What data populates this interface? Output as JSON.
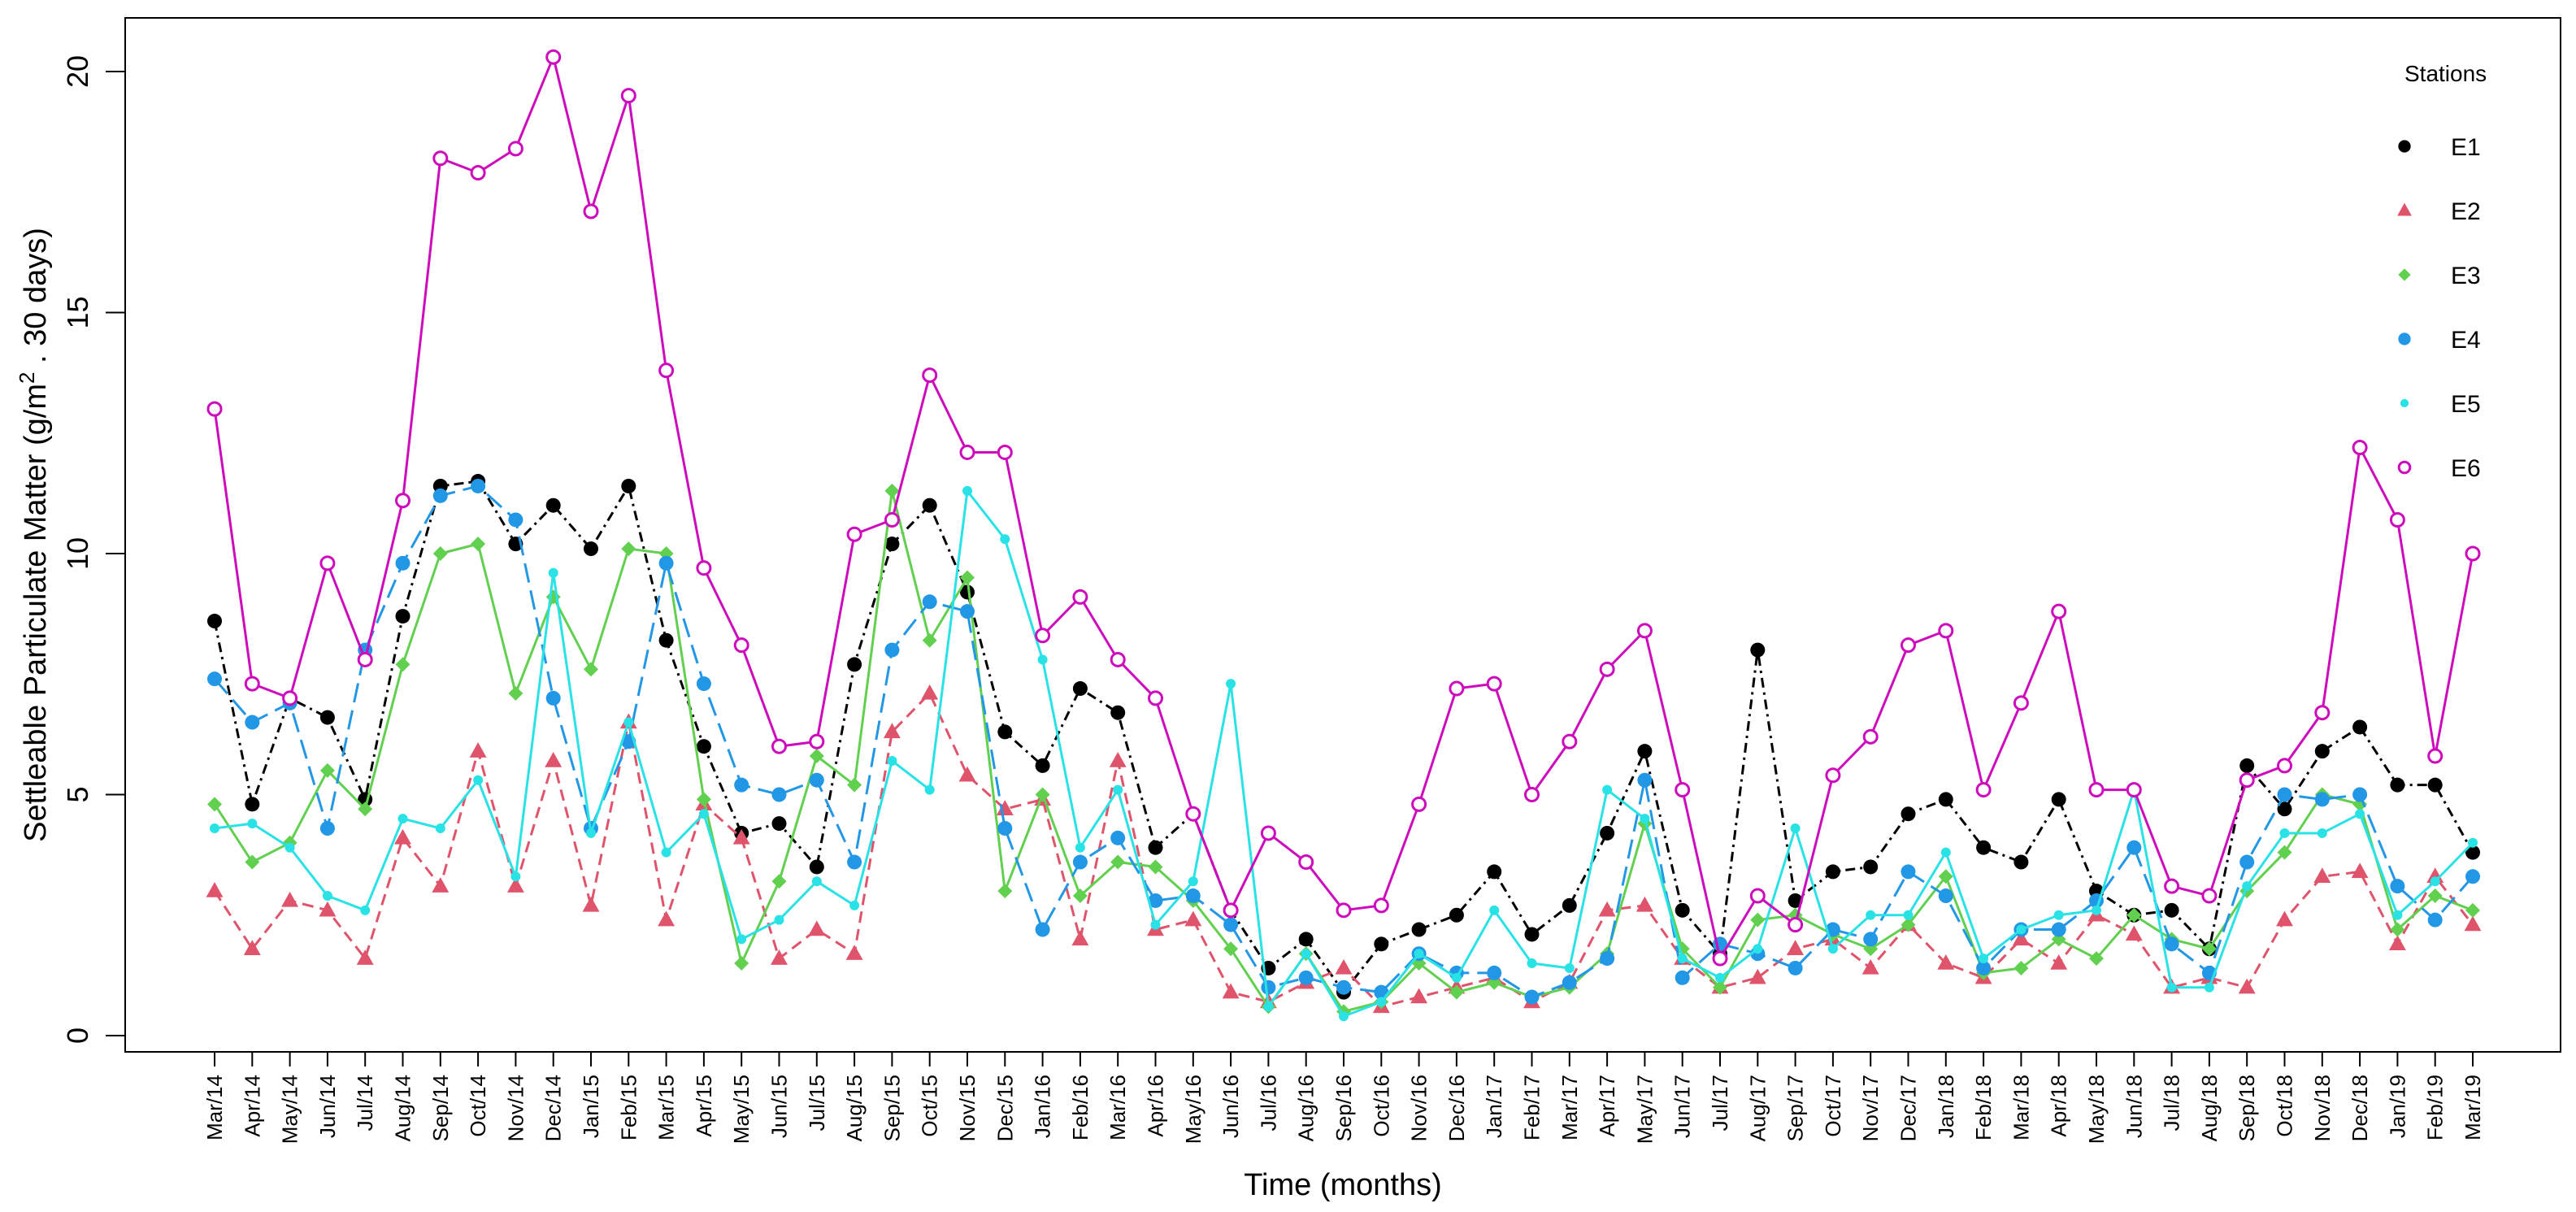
{
  "chart_data": {
    "type": "line",
    "xlabel": "Time (months)",
    "ylabel_prefix": "Settleable Particulate Matter (g/m",
    "ylabel_sup": "2",
    "ylabel_suffix": " . 30 days)",
    "ylim": [
      0,
      20.8
    ],
    "yticks": [
      0,
      5,
      10,
      15,
      20
    ],
    "grid": false,
    "legend": {
      "title": "Stations",
      "position": "top-right"
    },
    "categories": [
      "Mar/14",
      "Apr/14",
      "May/14",
      "Jun/14",
      "Jul/14",
      "Aug/14",
      "Sep/14",
      "Oct/14",
      "Nov/14",
      "Dec/14",
      "Jan/15",
      "Feb/15",
      "Mar/15",
      "Apr/15",
      "May/15",
      "Jun/15",
      "Jul/15",
      "Aug/15",
      "Sep/15",
      "Oct/15",
      "Nov/15",
      "Dec/15",
      "Jan/16",
      "Feb/16",
      "Mar/16",
      "Apr/16",
      "May/16",
      "Jun/16",
      "Jul/16",
      "Aug/16",
      "Sep/16",
      "Oct/16",
      "Nov/16",
      "Dec/16",
      "Jan/17",
      "Feb/17",
      "Mar/17",
      "Apr/17",
      "May/17",
      "Jun/17",
      "Jul/17",
      "Aug/17",
      "Sep/17",
      "Oct/17",
      "Nov/17",
      "Dec/17",
      "Jan/18",
      "Feb/18",
      "Mar/18",
      "Apr/18",
      "May/18",
      "Jun/18",
      "Jul/18",
      "Aug/18",
      "Sep/18",
      "Oct/18",
      "Nov/18",
      "Dec/18",
      "Jan/19",
      "Feb/19",
      "Mar/19"
    ],
    "series": [
      {
        "name": "E1",
        "color": "#000000",
        "marker": "filled-circle",
        "dash": "12,6,3,6",
        "values": [
          8.6,
          4.8,
          7.0,
          6.6,
          4.9,
          8.7,
          11.4,
          11.5,
          10.2,
          11.0,
          10.1,
          11.4,
          8.2,
          6.0,
          4.2,
          4.4,
          3.5,
          7.7,
          10.2,
          11.0,
          9.2,
          6.3,
          5.6,
          7.2,
          6.7,
          3.9,
          4.6,
          2.6,
          1.4,
          2.0,
          0.9,
          1.9,
          2.2,
          2.5,
          3.4,
          2.1,
          2.7,
          4.2,
          5.9,
          2.6,
          1.7,
          8.0,
          2.8,
          3.4,
          3.5,
          4.6,
          4.9,
          3.9,
          3.6,
          4.9,
          3.0,
          2.5,
          2.6,
          1.8,
          5.6,
          4.7,
          5.9,
          6.4,
          5.2,
          5.2,
          3.8
        ]
      },
      {
        "name": "E2",
        "color": "#DF536B",
        "marker": "triangle",
        "dash": "14,8",
        "values": [
          3.0,
          1.8,
          2.8,
          2.6,
          1.6,
          4.1,
          3.1,
          5.9,
          3.1,
          5.7,
          2.7,
          6.5,
          2.4,
          4.8,
          4.1,
          1.6,
          2.2,
          1.7,
          6.3,
          7.1,
          5.4,
          4.7,
          4.9,
          2.0,
          5.7,
          2.2,
          2.4,
          0.9,
          0.7,
          1.1,
          1.4,
          0.6,
          0.8,
          1.0,
          1.2,
          0.7,
          1.1,
          2.6,
          2.7,
          1.6,
          1.0,
          1.2,
          1.8,
          2.0,
          1.4,
          2.3,
          1.5,
          1.2,
          2.0,
          1.5,
          2.5,
          2.1,
          1.0,
          1.2,
          1.0,
          2.4,
          3.3,
          3.4,
          1.9,
          3.3,
          2.3
        ]
      },
      {
        "name": "E3",
        "color": "#61D04F",
        "marker": "diamond",
        "dash": "",
        "values": [
          4.8,
          3.6,
          4.0,
          5.5,
          4.7,
          7.7,
          10.0,
          10.2,
          7.1,
          9.1,
          7.6,
          10.1,
          10.0,
          4.9,
          1.5,
          3.2,
          5.8,
          5.2,
          11.3,
          8.2,
          9.5,
          3.0,
          5.0,
          2.9,
          3.6,
          3.5,
          2.8,
          1.8,
          0.6,
          1.7,
          0.5,
          0.7,
          1.5,
          0.9,
          1.1,
          0.8,
          1.0,
          1.7,
          4.4,
          1.8,
          1.0,
          2.4,
          2.5,
          2.1,
          1.8,
          2.3,
          3.3,
          1.3,
          1.4,
          2.0,
          1.6,
          2.5,
          2.0,
          1.8,
          3.0,
          3.8,
          5.0,
          4.8,
          2.2,
          2.9,
          2.6
        ]
      },
      {
        "name": "E4",
        "color": "#2297E6",
        "marker": "filled-circle",
        "dash": "24,10",
        "values": [
          7.4,
          6.5,
          6.9,
          4.3,
          8.0,
          9.8,
          11.2,
          11.4,
          10.7,
          7.0,
          4.3,
          6.1,
          9.8,
          7.3,
          5.2,
          5.0,
          5.3,
          3.6,
          8.0,
          9.0,
          8.8,
          4.3,
          2.2,
          3.6,
          4.1,
          2.8,
          2.9,
          2.3,
          1.0,
          1.2,
          1.0,
          0.9,
          1.7,
          1.3,
          1.3,
          0.8,
          1.1,
          1.6,
          5.3,
          1.2,
          1.9,
          1.7,
          1.4,
          2.2,
          2.0,
          3.4,
          2.9,
          1.4,
          2.2,
          2.2,
          2.8,
          3.9,
          1.9,
          1.3,
          3.6,
          5.0,
          4.9,
          5.0,
          3.1,
          2.4,
          3.3
        ]
      },
      {
        "name": "E5",
        "color": "#28E2E5",
        "marker": "small-dot",
        "dash": "",
        "values": [
          4.3,
          4.4,
          3.9,
          2.9,
          2.6,
          4.5,
          4.3,
          5.3,
          3.3,
          9.6,
          4.2,
          6.5,
          3.8,
          4.6,
          2.0,
          2.4,
          3.2,
          2.7,
          5.7,
          5.1,
          11.3,
          10.3,
          7.8,
          3.9,
          5.1,
          2.3,
          3.2,
          7.3,
          0.6,
          1.7,
          0.4,
          0.7,
          1.7,
          1.2,
          2.6,
          1.5,
          1.4,
          5.1,
          4.5,
          1.6,
          1.2,
          1.8,
          4.3,
          1.8,
          2.5,
          2.5,
          3.8,
          1.6,
          2.2,
          2.5,
          2.6,
          5.1,
          1.0,
          1.0,
          3.1,
          4.2,
          4.2,
          4.6,
          2.5,
          3.2,
          4.0
        ]
      },
      {
        "name": "E6",
        "color": "#CD0BBC",
        "marker": "open-circle",
        "dash": "",
        "values": [
          13.0,
          7.3,
          7.0,
          9.8,
          7.8,
          11.1,
          18.2,
          17.9,
          18.4,
          20.3,
          17.1,
          19.5,
          13.8,
          9.7,
          8.1,
          6.0,
          6.1,
          10.4,
          10.7,
          13.7,
          12.1,
          12.1,
          8.3,
          9.1,
          7.8,
          7.0,
          4.6,
          2.6,
          4.2,
          3.6,
          2.6,
          2.7,
          4.8,
          7.2,
          7.3,
          5.0,
          6.1,
          7.6,
          8.4,
          5.1,
          1.6,
          2.9,
          2.3,
          5.4,
          6.2,
          8.1,
          8.4,
          5.1,
          6.9,
          8.8,
          5.1,
          5.1,
          3.1,
          2.9,
          5.3,
          5.6,
          6.7,
          12.2,
          10.7,
          5.8,
          10.0
        ]
      }
    ]
  }
}
